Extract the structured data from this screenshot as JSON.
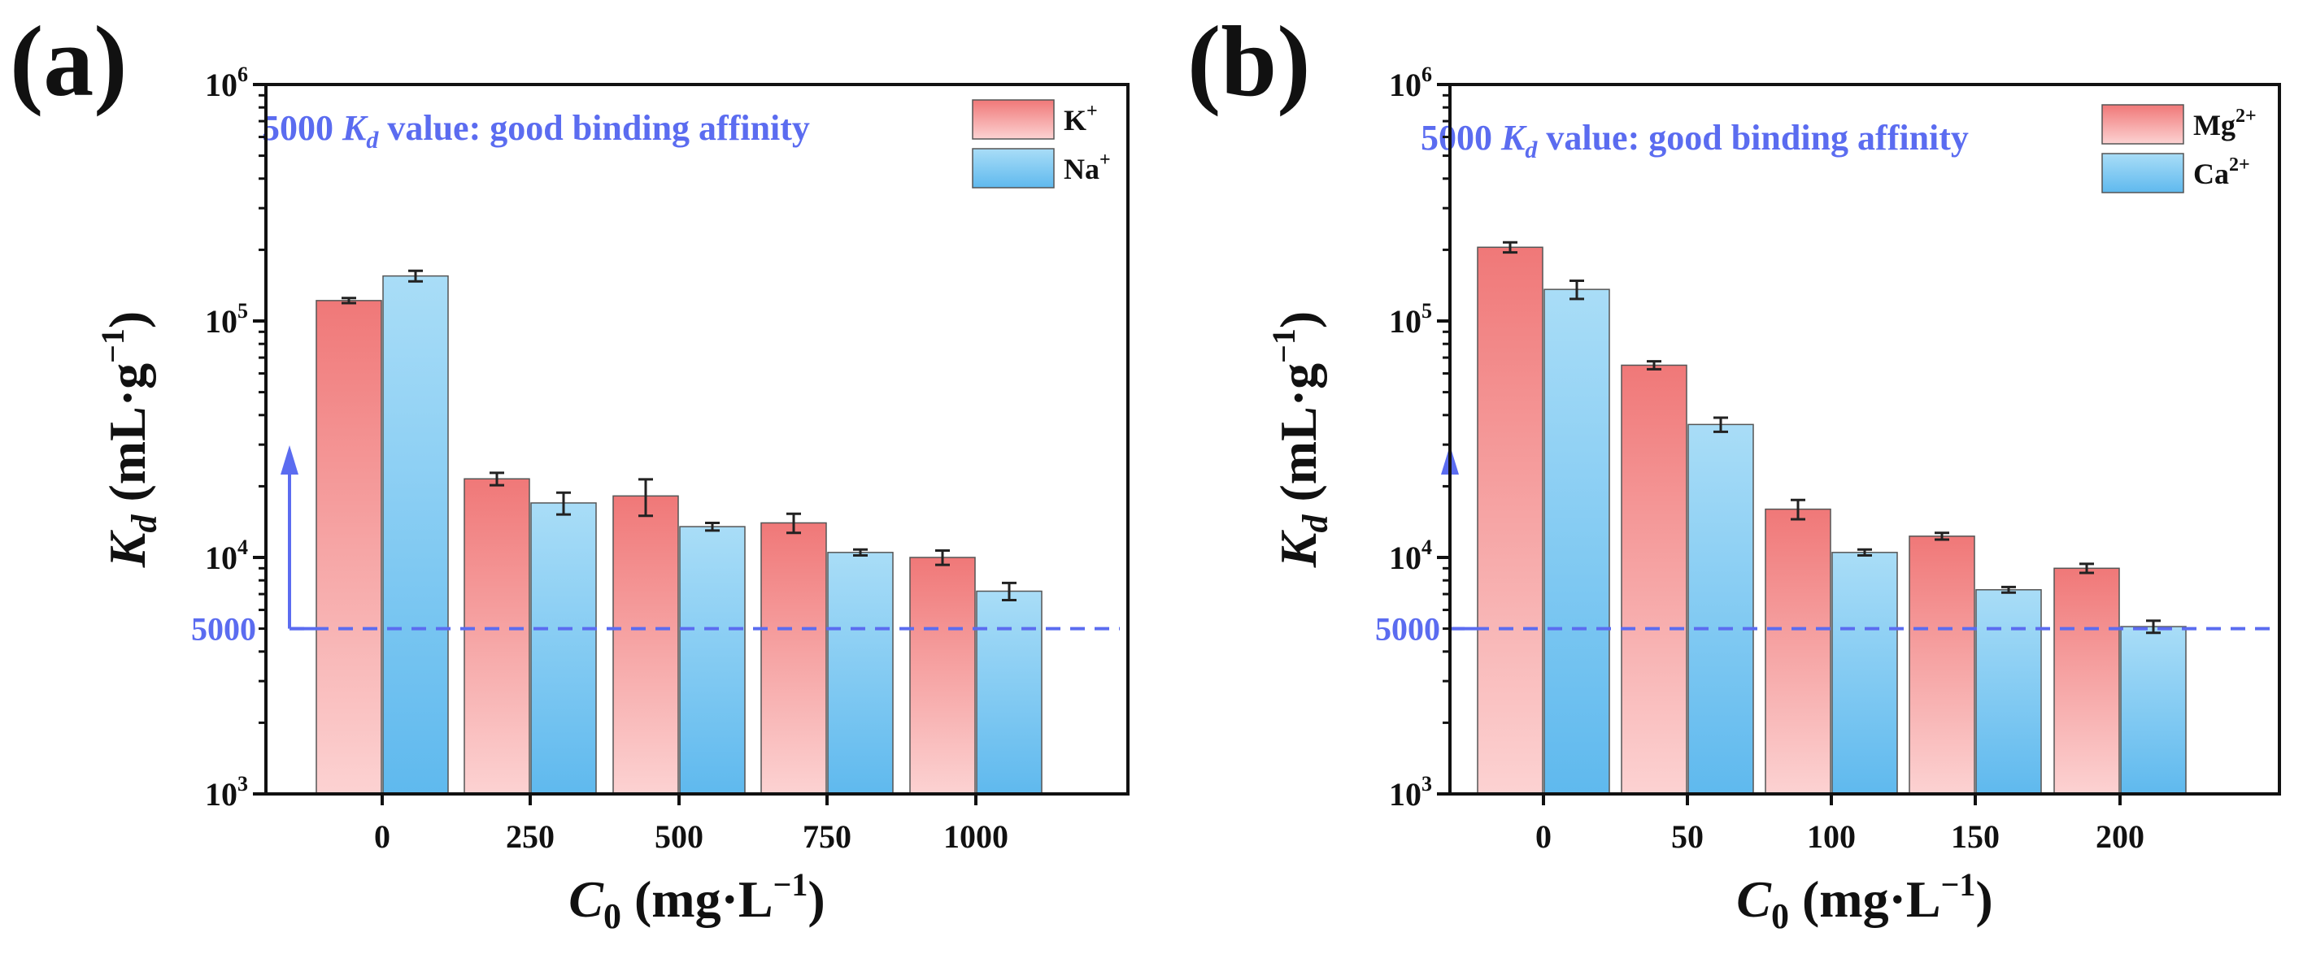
{
  "chart_data": [
    {
      "panel": "(a)",
      "type": "bar",
      "scale": "log",
      "ylim": [
        1000,
        1000000
      ],
      "categories": [
        "0",
        "250",
        "500",
        "750",
        "1000"
      ],
      "series": [
        {
          "name": "K",
          "charge": "+",
          "color_top": "#f07878",
          "color_bottom": "#fcd2d2",
          "values": [
            122000,
            21500,
            18200,
            14000,
            10000
          ],
          "errors": [
            3000,
            1300,
            3200,
            1300,
            700
          ]
        },
        {
          "name": "Na",
          "charge": "+",
          "color_top": "#a9ddf7",
          "color_bottom": "#5fb9ee",
          "values": [
            155000,
            17000,
            13500,
            10500,
            7200
          ],
          "errors": [
            8000,
            1800,
            500,
            300,
            600
          ]
        }
      ],
      "y_ticks": [
        {
          "base": "10",
          "exp": "3",
          "value": 1000
        },
        {
          "base": "10",
          "exp": "4",
          "value": 10000
        },
        {
          "base": "10",
          "exp": "5",
          "value": 100000
        },
        {
          "base": "10",
          "exp": "6",
          "value": 1000000
        }
      ],
      "threshold": {
        "value": 5000,
        "label": "5000"
      },
      "annotation": {
        "prefix": "5000 ",
        "symbol": "K",
        "sub": "d",
        "suffix": " value: good binding affinity"
      },
      "ylabel": {
        "symbol": "K",
        "sub": "d",
        "unit_open": " (mL·g",
        "unit_exp": "−1",
        "unit_close": ")"
      },
      "xlabel": {
        "symbol": "C",
        "sub": "0",
        "unit_open": " (mg·L",
        "unit_exp": "−1",
        "unit_close": ")"
      },
      "legend_position": "top-right"
    },
    {
      "panel": "(b)",
      "type": "bar",
      "scale": "log",
      "ylim": [
        1000,
        1000000
      ],
      "categories": [
        "0",
        "50",
        "100",
        "150",
        "200"
      ],
      "series": [
        {
          "name": "Mg",
          "charge": "2+",
          "color_top": "#f07878",
          "color_bottom": "#fcd2d2",
          "values": [
            205000,
            65000,
            16000,
            12300,
            9000
          ],
          "errors": [
            10000,
            2500,
            1500,
            400,
            400
          ]
        },
        {
          "name": "Ca",
          "charge": "2+",
          "color_top": "#a9ddf7",
          "color_bottom": "#5fb9ee",
          "values": [
            136000,
            36500,
            10500,
            7300,
            5100
          ],
          "errors": [
            12000,
            2500,
            300,
            200,
            300
          ]
        }
      ],
      "y_ticks": [
        {
          "base": "10",
          "exp": "3",
          "value": 1000
        },
        {
          "base": "10",
          "exp": "4",
          "value": 10000
        },
        {
          "base": "10",
          "exp": "5",
          "value": 100000
        },
        {
          "base": "10",
          "exp": "6",
          "value": 1000000
        }
      ],
      "threshold": {
        "value": 5000,
        "label": "5000"
      },
      "annotation": {
        "prefix": "5000 ",
        "symbol": "K",
        "sub": "d",
        "suffix": " value: good binding affinity"
      },
      "ylabel": {
        "symbol": "K",
        "sub": "d",
        "unit_open": " (mL·g",
        "unit_exp": "−1",
        "unit_close": ")"
      },
      "xlabel": {
        "symbol": "C",
        "sub": "0",
        "unit_open": " (mg·L",
        "unit_exp": "−1",
        "unit_close": ")"
      },
      "legend_position": "top-right"
    }
  ]
}
